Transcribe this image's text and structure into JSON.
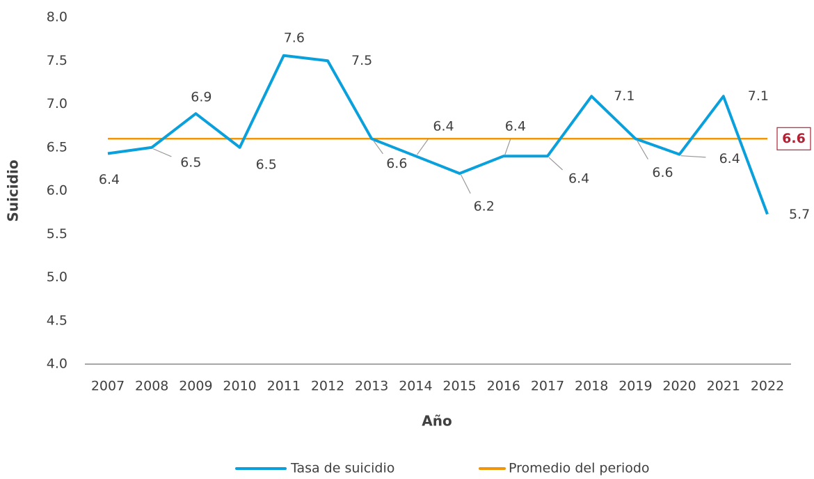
{
  "chart_data": {
    "type": "line",
    "x_label": "Año",
    "y_label": "Suicidio",
    "categories": [
      "2007",
      "2008",
      "2009",
      "2010",
      "2011",
      "2012",
      "2013",
      "2014",
      "2015",
      "2016",
      "2017",
      "2018",
      "2019",
      "2020",
      "2021",
      "2022"
    ],
    "series": [
      {
        "name": "Tasa de suicidio",
        "color": "#0aa0dc",
        "values": [
          6.43,
          6.5,
          6.89,
          6.5,
          7.56,
          7.5,
          6.6,
          6.4,
          6.2,
          6.4,
          6.4,
          7.09,
          6.6,
          6.42,
          7.09,
          5.73
        ],
        "value_labels": [
          "6.4",
          "6.5",
          "6.9",
          "6.5",
          "7.6",
          "7.5",
          "6.6",
          "6.4",
          "6.2",
          "6.4",
          "6.4",
          "7.1",
          "6.6",
          "6.4",
          "7.1",
          "5.7"
        ]
      },
      {
        "name": "Promedio del periodo",
        "color": "#f0960a",
        "values": [
          6.6,
          6.6,
          6.6,
          6.6,
          6.6,
          6.6,
          6.6,
          6.6,
          6.6,
          6.6,
          6.6,
          6.6,
          6.6,
          6.6,
          6.6,
          6.6
        ]
      }
    ],
    "ylim": [
      4,
      8
    ],
    "yticks": [
      {
        "value": 4,
        "label": "4.0"
      },
      4.5,
      {
        "value": 5,
        "label": "5.0"
      },
      5.5,
      {
        "value": 6,
        "label": "6.0"
      },
      6.5,
      {
        "value": 7,
        "label": "7.0"
      },
      7.5,
      {
        "value": 8,
        "label": "8.0"
      }
    ],
    "grid": false
  }
}
